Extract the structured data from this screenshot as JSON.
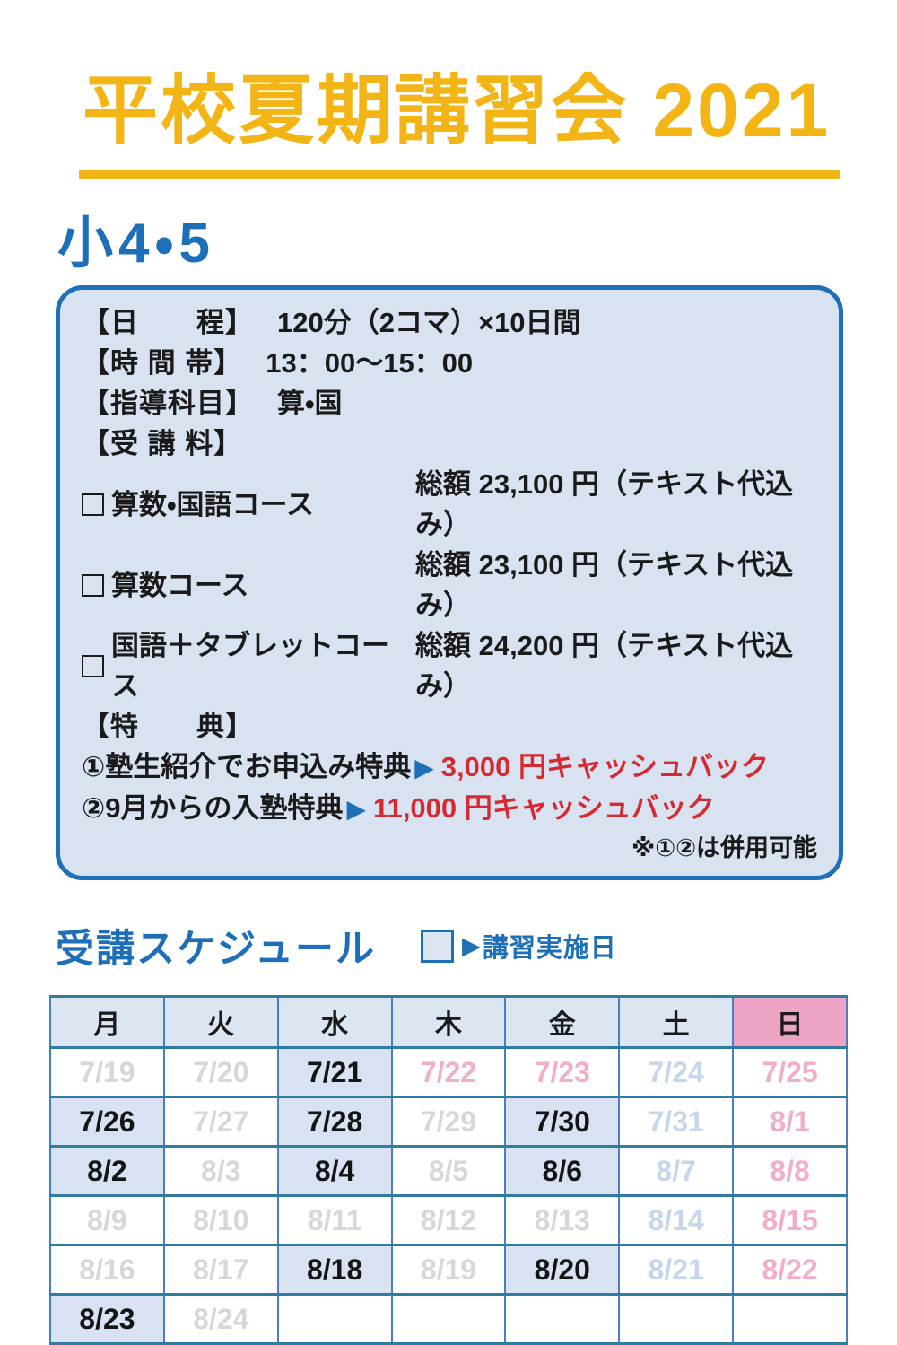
{
  "page": {
    "title": "平校夏期講習会 2021",
    "grade": "小4・5"
  },
  "icons": {
    "arrow_right": "▶"
  },
  "info_box": {
    "rows": [
      {
        "label": "【日　　程】",
        "value": "120分（2コマ）×10日間"
      },
      {
        "label": "【時 間 帯】",
        "value": "13：00～15：00"
      },
      {
        "label": "【指導科目】",
        "value": "算・国"
      },
      {
        "label": "【受 講 料】",
        "value": ""
      }
    ],
    "courses": [
      {
        "name": "算数・国語コース",
        "price": "総額 23,100 円（テキスト代込み）"
      },
      {
        "name": "算数コース",
        "price": "総額 23,100 円（テキスト代込み）"
      },
      {
        "name": "国語＋タブレットコース",
        "price": "総額 24,200 円（テキスト代込み）"
      }
    ],
    "benefits_label": "【特　　典】",
    "benefits": [
      {
        "text": "①塾生紹介でお申込み特典",
        "highlight": "3,000 円キャッシュバック"
      },
      {
        "text": "②9月からの入塾特典",
        "highlight": "11,000 円キャッシュバック"
      }
    ],
    "note": "※①②は併用可能"
  },
  "schedule": {
    "heading": "受講スケジュール",
    "legend_label": "講習実施日",
    "weekdays": [
      {
        "label": "月",
        "type": "weekday"
      },
      {
        "label": "火",
        "type": "weekday"
      },
      {
        "label": "水",
        "type": "weekday"
      },
      {
        "label": "木",
        "type": "weekday"
      },
      {
        "label": "金",
        "type": "weekday"
      },
      {
        "label": "土",
        "type": "weekday"
      },
      {
        "label": "日",
        "type": "sunday"
      }
    ],
    "rows": [
      [
        {
          "date": "7/19",
          "kind": "off"
        },
        {
          "date": "7/20",
          "kind": "off"
        },
        {
          "date": "7/21",
          "kind": "class"
        },
        {
          "date": "7/22",
          "kind": "sun"
        },
        {
          "date": "7/23",
          "kind": "sun"
        },
        {
          "date": "7/24",
          "kind": "sat"
        },
        {
          "date": "7/25",
          "kind": "sun"
        }
      ],
      [
        {
          "date": "7/26",
          "kind": "class"
        },
        {
          "date": "7/27",
          "kind": "off"
        },
        {
          "date": "7/28",
          "kind": "class"
        },
        {
          "date": "7/29",
          "kind": "off"
        },
        {
          "date": "7/30",
          "kind": "class"
        },
        {
          "date": "7/31",
          "kind": "sat"
        },
        {
          "date": "8/1",
          "kind": "sun"
        }
      ],
      [
        {
          "date": "8/2",
          "kind": "class"
        },
        {
          "date": "8/3",
          "kind": "off"
        },
        {
          "date": "8/4",
          "kind": "class"
        },
        {
          "date": "8/5",
          "kind": "off"
        },
        {
          "date": "8/6",
          "kind": "class"
        },
        {
          "date": "8/7",
          "kind": "sat"
        },
        {
          "date": "8/8",
          "kind": "sun"
        }
      ],
      [
        {
          "date": "8/9",
          "kind": "off"
        },
        {
          "date": "8/10",
          "kind": "off"
        },
        {
          "date": "8/11",
          "kind": "off"
        },
        {
          "date": "8/12",
          "kind": "off"
        },
        {
          "date": "8/13",
          "kind": "off"
        },
        {
          "date": "8/14",
          "kind": "sat"
        },
        {
          "date": "8/15",
          "kind": "sun"
        }
      ],
      [
        {
          "date": "8/16",
          "kind": "off"
        },
        {
          "date": "8/17",
          "kind": "off"
        },
        {
          "date": "8/18",
          "kind": "class"
        },
        {
          "date": "8/19",
          "kind": "off"
        },
        {
          "date": "8/20",
          "kind": "class"
        },
        {
          "date": "8/21",
          "kind": "sat"
        },
        {
          "date": "8/22",
          "kind": "sun"
        }
      ],
      [
        {
          "date": "8/23",
          "kind": "class"
        },
        {
          "date": "8/24",
          "kind": "off"
        },
        {
          "date": "",
          "kind": "empty"
        },
        {
          "date": "",
          "kind": "empty"
        },
        {
          "date": "",
          "kind": "empty"
        },
        {
          "date": "",
          "kind": "empty"
        },
        {
          "date": "",
          "kind": "empty"
        }
      ]
    ]
  },
  "colors": {
    "accent_yellow": "#F3B515",
    "accent_blue": "#1D6FB8",
    "accent_red": "#D62A32",
    "box_bg": "#D9E2F0",
    "weekday_header_bg": "#DCE6F2",
    "sunday_header_bg": "#ECA3C4",
    "class_day_bg": "#D9E2F2",
    "off_text": "#D5D7D9",
    "saturday_text": "#C7D5EC",
    "sunday_text": "#F0AECA"
  }
}
